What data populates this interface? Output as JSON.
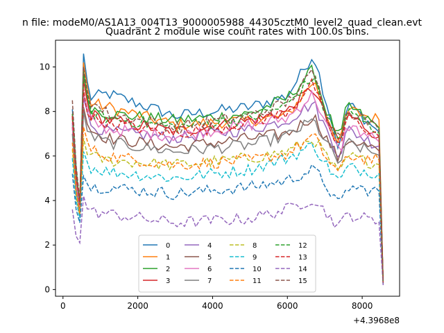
{
  "figure": {
    "suptitle": "n file: modeM0/AS1A13_004T13_9000005988_44305cztM0_level2_quad_clean.evt",
    "axes_offset_label": "+4.3968e8"
  },
  "chart_data": {
    "type": "line",
    "title": "Quadrant 2 module wise count rates with 100.0s bins.",
    "xlabel": "",
    "ylabel": "",
    "xlim": [
      -200,
      9000
    ],
    "ylim": [
      -0.3,
      11.2
    ],
    "xticks": [
      0,
      2000,
      4000,
      6000,
      8000
    ],
    "yticks": [
      0,
      2,
      4,
      6,
      8,
      10
    ],
    "grid": false,
    "legend": {
      "position": "lower-center",
      "columns": 4
    },
    "x": {
      "start": 250,
      "step": 100,
      "count": 84
    },
    "series": [
      {
        "name": "0",
        "color": "#1f77b4",
        "dash": "solid",
        "anchors": [
          [
            250,
            8.1
          ],
          [
            350,
            5.5
          ],
          [
            450,
            3.6
          ],
          [
            550,
            10.6
          ],
          [
            700,
            8.6
          ],
          [
            1200,
            8.8
          ],
          [
            3000,
            7.8
          ],
          [
            5000,
            8.2
          ],
          [
            6000,
            8.7
          ],
          [
            6700,
            10.6
          ],
          [
            7000,
            8.7
          ],
          [
            7400,
            6.2
          ],
          [
            7600,
            8.4
          ],
          [
            8500,
            7.0
          ],
          [
            8560,
            0.3
          ]
        ]
      },
      {
        "name": "1",
        "color": "#ff7f0e",
        "dash": "solid",
        "anchors": [
          [
            250,
            7.9
          ],
          [
            350,
            5.2
          ],
          [
            450,
            3.8
          ],
          [
            550,
            10.2
          ],
          [
            700,
            8.4
          ],
          [
            1200,
            8.2
          ],
          [
            3000,
            7.4
          ],
          [
            5000,
            7.6
          ],
          [
            6000,
            7.8
          ],
          [
            6700,
            9.4
          ],
          [
            7000,
            8.1
          ],
          [
            7400,
            6.4
          ],
          [
            7600,
            8.1
          ],
          [
            8500,
            7.6
          ],
          [
            8560,
            0.3
          ]
        ]
      },
      {
        "name": "2",
        "color": "#2ca02c",
        "dash": "solid",
        "anchors": [
          [
            250,
            7.8
          ],
          [
            350,
            5.1
          ],
          [
            450,
            3.9
          ],
          [
            550,
            9.8
          ],
          [
            700,
            8.2
          ],
          [
            1200,
            7.9
          ],
          [
            3000,
            7.6
          ],
          [
            5000,
            7.9
          ],
          [
            6000,
            8.6
          ],
          [
            6700,
            9.9
          ],
          [
            7000,
            8.2
          ],
          [
            7400,
            6.7
          ],
          [
            7600,
            8.3
          ],
          [
            8500,
            7.2
          ],
          [
            8560,
            0.3
          ]
        ]
      },
      {
        "name": "3",
        "color": "#d62728",
        "dash": "solid",
        "anchors": [
          [
            250,
            7.7
          ],
          [
            350,
            5.0
          ],
          [
            450,
            3.8
          ],
          [
            550,
            9.4
          ],
          [
            700,
            7.9
          ],
          [
            1200,
            7.6
          ],
          [
            3000,
            7.1
          ],
          [
            5000,
            7.6
          ],
          [
            6000,
            8.0
          ],
          [
            6700,
            9.1
          ],
          [
            7000,
            7.8
          ],
          [
            7400,
            6.5
          ],
          [
            7600,
            7.9
          ],
          [
            8500,
            6.8
          ],
          [
            8560,
            0.3
          ]
        ]
      },
      {
        "name": "4",
        "color": "#9467bd",
        "dash": "solid",
        "anchors": [
          [
            250,
            7.5
          ],
          [
            350,
            4.8
          ],
          [
            450,
            3.6
          ],
          [
            550,
            8.6
          ],
          [
            700,
            7.4
          ],
          [
            1200,
            7.1
          ],
          [
            3000,
            6.8
          ],
          [
            5000,
            7.2
          ],
          [
            6000,
            7.6
          ],
          [
            6700,
            8.4
          ],
          [
            7000,
            7.3
          ],
          [
            7400,
            6.0
          ],
          [
            7600,
            7.2
          ],
          [
            8500,
            6.4
          ],
          [
            8560,
            0.3
          ]
        ]
      },
      {
        "name": "5",
        "color": "#8c564b",
        "dash": "solid",
        "anchors": [
          [
            250,
            7.3
          ],
          [
            350,
            4.6
          ],
          [
            450,
            3.5
          ],
          [
            550,
            8.2
          ],
          [
            700,
            7.2
          ],
          [
            1200,
            6.8
          ],
          [
            3000,
            6.4
          ],
          [
            5000,
            6.8
          ],
          [
            6000,
            7.0
          ],
          [
            6700,
            7.8
          ],
          [
            7000,
            6.9
          ],
          [
            7400,
            5.8
          ],
          [
            7600,
            6.8
          ],
          [
            8500,
            6.2
          ],
          [
            8560,
            0.3
          ]
        ]
      },
      {
        "name": "6",
        "color": "#e377c2",
        "dash": "solid",
        "anchors": [
          [
            250,
            7.4
          ],
          [
            350,
            4.7
          ],
          [
            450,
            3.7
          ],
          [
            550,
            8.8
          ],
          [
            700,
            7.6
          ],
          [
            1200,
            7.2
          ],
          [
            3000,
            6.9
          ],
          [
            5000,
            7.4
          ],
          [
            6000,
            7.7
          ],
          [
            6700,
            8.8
          ],
          [
            7000,
            7.5
          ],
          [
            7400,
            6.1
          ],
          [
            7600,
            7.4
          ],
          [
            8500,
            6.6
          ],
          [
            8560,
            0.3
          ]
        ]
      },
      {
        "name": "7",
        "color": "#7f7f7f",
        "dash": "solid",
        "anchors": [
          [
            250,
            7.0
          ],
          [
            350,
            4.5
          ],
          [
            450,
            3.4
          ],
          [
            550,
            8.0
          ],
          [
            700,
            6.9
          ],
          [
            1200,
            6.6
          ],
          [
            3000,
            6.2
          ],
          [
            5000,
            6.5
          ],
          [
            6000,
            6.9
          ],
          [
            6700,
            7.6
          ],
          [
            7000,
            6.7
          ],
          [
            7400,
            5.6
          ],
          [
            7600,
            6.6
          ],
          [
            8500,
            6.0
          ],
          [
            8560,
            0.3
          ]
        ]
      },
      {
        "name": "8",
        "color": "#bcbd22",
        "dash": "dashed",
        "anchors": [
          [
            250,
            6.3
          ],
          [
            350,
            4.2
          ],
          [
            450,
            3.3
          ],
          [
            550,
            6.8
          ],
          [
            700,
            6.0
          ],
          [
            1200,
            5.8
          ],
          [
            3000,
            5.6
          ],
          [
            5000,
            5.9
          ],
          [
            6000,
            6.2
          ],
          [
            6700,
            6.8
          ],
          [
            7000,
            6.1
          ],
          [
            7400,
            5.1
          ],
          [
            7600,
            6.0
          ],
          [
            8500,
            5.6
          ],
          [
            8560,
            0.25
          ]
        ]
      },
      {
        "name": "9",
        "color": "#17becf",
        "dash": "dashed",
        "anchors": [
          [
            250,
            5.9
          ],
          [
            350,
            4.0
          ],
          [
            450,
            3.2
          ],
          [
            550,
            6.2
          ],
          [
            700,
            5.5
          ],
          [
            1200,
            5.3
          ],
          [
            3000,
            5.0
          ],
          [
            5000,
            5.4
          ],
          [
            6000,
            5.9
          ],
          [
            6700,
            6.5
          ],
          [
            7000,
            5.7
          ],
          [
            7400,
            4.8
          ],
          [
            7600,
            5.5
          ],
          [
            8500,
            5.2
          ],
          [
            8560,
            0.25
          ]
        ]
      },
      {
        "name": "10",
        "color": "#1f77b4",
        "dash": "dashed",
        "anchors": [
          [
            250,
            5.2
          ],
          [
            350,
            3.6
          ],
          [
            450,
            3.0
          ],
          [
            550,
            5.1
          ],
          [
            700,
            4.6
          ],
          [
            1200,
            4.6
          ],
          [
            3000,
            4.3
          ],
          [
            5000,
            4.6
          ],
          [
            6000,
            4.9
          ],
          [
            6700,
            5.4
          ],
          [
            7000,
            4.8
          ],
          [
            7400,
            3.7
          ],
          [
            7600,
            4.6
          ],
          [
            8500,
            4.4
          ],
          [
            8560,
            0.2
          ]
        ]
      },
      {
        "name": "11",
        "color": "#ff7f0e",
        "dash": "dashed",
        "anchors": [
          [
            250,
            6.6
          ],
          [
            350,
            4.4
          ],
          [
            450,
            3.4
          ],
          [
            550,
            7.3
          ],
          [
            700,
            6.3
          ],
          [
            1200,
            6.0
          ],
          [
            3000,
            5.6
          ],
          [
            5000,
            5.8
          ],
          [
            6000,
            6.1
          ],
          [
            6700,
            6.9
          ],
          [
            7000,
            6.0
          ],
          [
            7400,
            5.2
          ],
          [
            7600,
            6.0
          ],
          [
            8500,
            5.8
          ],
          [
            8560,
            0.25
          ]
        ]
      },
      {
        "name": "12",
        "color": "#2ca02c",
        "dash": "dashed",
        "anchors": [
          [
            250,
            7.9
          ],
          [
            350,
            5.3
          ],
          [
            450,
            3.9
          ],
          [
            550,
            9.6
          ],
          [
            700,
            8.0
          ],
          [
            1200,
            7.7
          ],
          [
            3000,
            7.3
          ],
          [
            5000,
            7.7
          ],
          [
            6000,
            8.3
          ],
          [
            6700,
            9.6
          ],
          [
            7000,
            8.0
          ],
          [
            7400,
            6.6
          ],
          [
            7600,
            8.0
          ],
          [
            8500,
            7.0
          ],
          [
            8560,
            0.3
          ]
        ]
      },
      {
        "name": "13",
        "color": "#d62728",
        "dash": "dashed",
        "anchors": [
          [
            250,
            7.8
          ],
          [
            350,
            5.1
          ],
          [
            450,
            3.8
          ],
          [
            550,
            9.0
          ],
          [
            700,
            7.7
          ],
          [
            1200,
            7.5
          ],
          [
            3000,
            7.0
          ],
          [
            5000,
            7.5
          ],
          [
            6000,
            8.0
          ],
          [
            6700,
            9.3
          ],
          [
            7000,
            7.7
          ],
          [
            7400,
            6.3
          ],
          [
            7600,
            7.8
          ],
          [
            8500,
            6.8
          ],
          [
            8560,
            0.3
          ]
        ]
      },
      {
        "name": "14",
        "color": "#9467bd",
        "dash": "dashed",
        "anchors": [
          [
            250,
            3.6
          ],
          [
            350,
            2.4
          ],
          [
            450,
            2.1
          ],
          [
            550,
            4.2
          ],
          [
            700,
            3.5
          ],
          [
            1200,
            3.4
          ],
          [
            3000,
            3.0
          ],
          [
            5000,
            3.2
          ],
          [
            6000,
            3.6
          ],
          [
            6700,
            4.1
          ],
          [
            7000,
            3.5
          ],
          [
            7400,
            2.8
          ],
          [
            7600,
            3.4
          ],
          [
            8500,
            3.0
          ],
          [
            8560,
            0.2
          ]
        ]
      },
      {
        "name": "15",
        "color": "#8c564b",
        "dash": "dashed",
        "anchors": [
          [
            250,
            8.5
          ],
          [
            350,
            5.6
          ],
          [
            450,
            4.0
          ],
          [
            550,
            10.0
          ],
          [
            700,
            8.5
          ],
          [
            1200,
            7.9
          ],
          [
            3000,
            7.3
          ],
          [
            5000,
            7.8
          ],
          [
            6000,
            8.4
          ],
          [
            6700,
            9.8
          ],
          [
            7000,
            8.1
          ],
          [
            7400,
            6.7
          ],
          [
            7600,
            8.2
          ],
          [
            8500,
            7.1
          ],
          [
            8560,
            0.3
          ]
        ]
      }
    ]
  }
}
